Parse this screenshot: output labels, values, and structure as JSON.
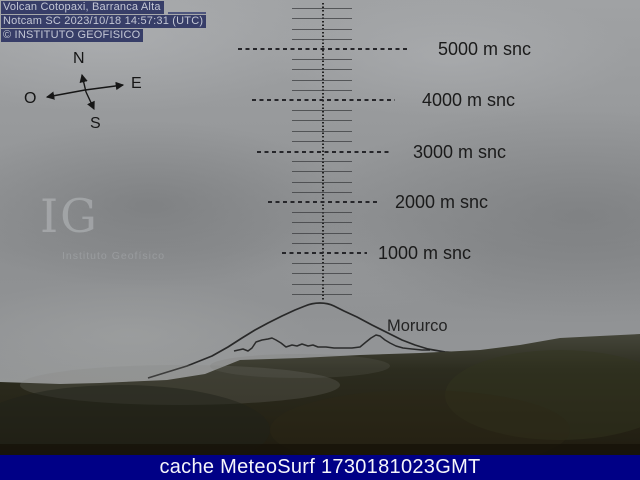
{
  "overlay": {
    "title": "Volcan Cotopaxi, Barranca Alta",
    "timestamp": "Notcam SC 2023/10/18 14:57:31 (UTC)",
    "copyright": "© INSTITUTO GEOFISICO"
  },
  "compass": {
    "n": "N",
    "e": "E",
    "w": "O",
    "s": "S"
  },
  "altitude_scale": {
    "unit": "m snc",
    "altitudes": [
      5000,
      4000,
      3000,
      2000,
      1000
    ],
    "labels": [
      "5000 m snc",
      "4000 m snc",
      "3000 m snc",
      "2000 m snc",
      "1000 m snc"
    ]
  },
  "annotations": {
    "peak_label": "Morurco"
  },
  "watermark": {
    "initials": "IG",
    "subtitle": "Instituto Geofísico"
  },
  "footer": {
    "text": "cache MeteoSurf 1730181023GMT"
  },
  "colors": {
    "footer-bg": "#000086",
    "overlay-bg": "#2e3563",
    "overlay-text": "#c6cad9",
    "scale-line": "#26262a",
    "label-text": "#1b1b1b"
  }
}
